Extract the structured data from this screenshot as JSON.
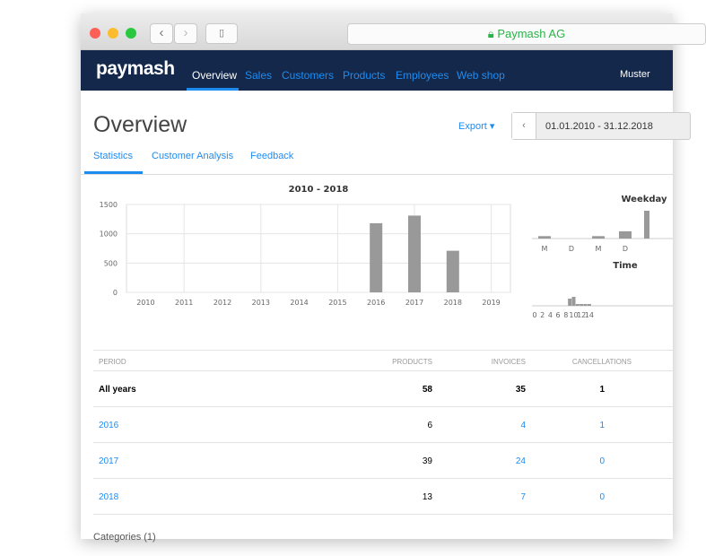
{
  "browser": {
    "url_label": "Paymash AG"
  },
  "nav": {
    "logo": "paymash",
    "items": [
      "Overview",
      "Sales",
      "Customers",
      "Products",
      "Employees",
      "Web shop"
    ],
    "user": "Muster"
  },
  "page": {
    "title": "Overview",
    "export": "Export ▾",
    "date_range": "01.01.2010 - 31.12.2018"
  },
  "tabs": [
    "Statistics",
    "Customer Analysis",
    "Feedback"
  ],
  "chart_data": [
    {
      "type": "bar",
      "title": "2010 - 2018",
      "categories": [
        "2010",
        "2011",
        "2012",
        "2013",
        "2014",
        "2015",
        "2016",
        "2017",
        "2018",
        "2019"
      ],
      "values": [
        0,
        0,
        0,
        0,
        0,
        0,
        1180,
        1310,
        710,
        0
      ],
      "ylim": [
        0,
        1500
      ],
      "yticks": [
        0,
        500,
        1000,
        1500
      ],
      "grid": true
    },
    {
      "type": "bar",
      "title": "Weekday",
      "categories": [
        "M",
        "D",
        "M",
        "D"
      ],
      "values": [
        1,
        0,
        1,
        3
      ]
    },
    {
      "type": "bar",
      "title": "Time",
      "xticks": [
        "0",
        "2",
        "4",
        "6",
        "8",
        "10",
        "12",
        "14"
      ],
      "x": [
        9,
        10,
        11,
        12,
        13,
        14
      ],
      "values": [
        4,
        5,
        1,
        1,
        1,
        1
      ]
    }
  ],
  "table": {
    "headers": [
      "PERIOD",
      "PRODUCTS",
      "INVOICES",
      "CANCELLATIONS"
    ],
    "rows": [
      [
        "All years",
        "58",
        "35",
        "1"
      ],
      [
        "2016",
        "6",
        "4",
        "1"
      ],
      [
        "2017",
        "39",
        "24",
        "0"
      ],
      [
        "2018",
        "13",
        "7",
        "0"
      ]
    ]
  },
  "footer": {
    "partial": "Categories (1)"
  }
}
